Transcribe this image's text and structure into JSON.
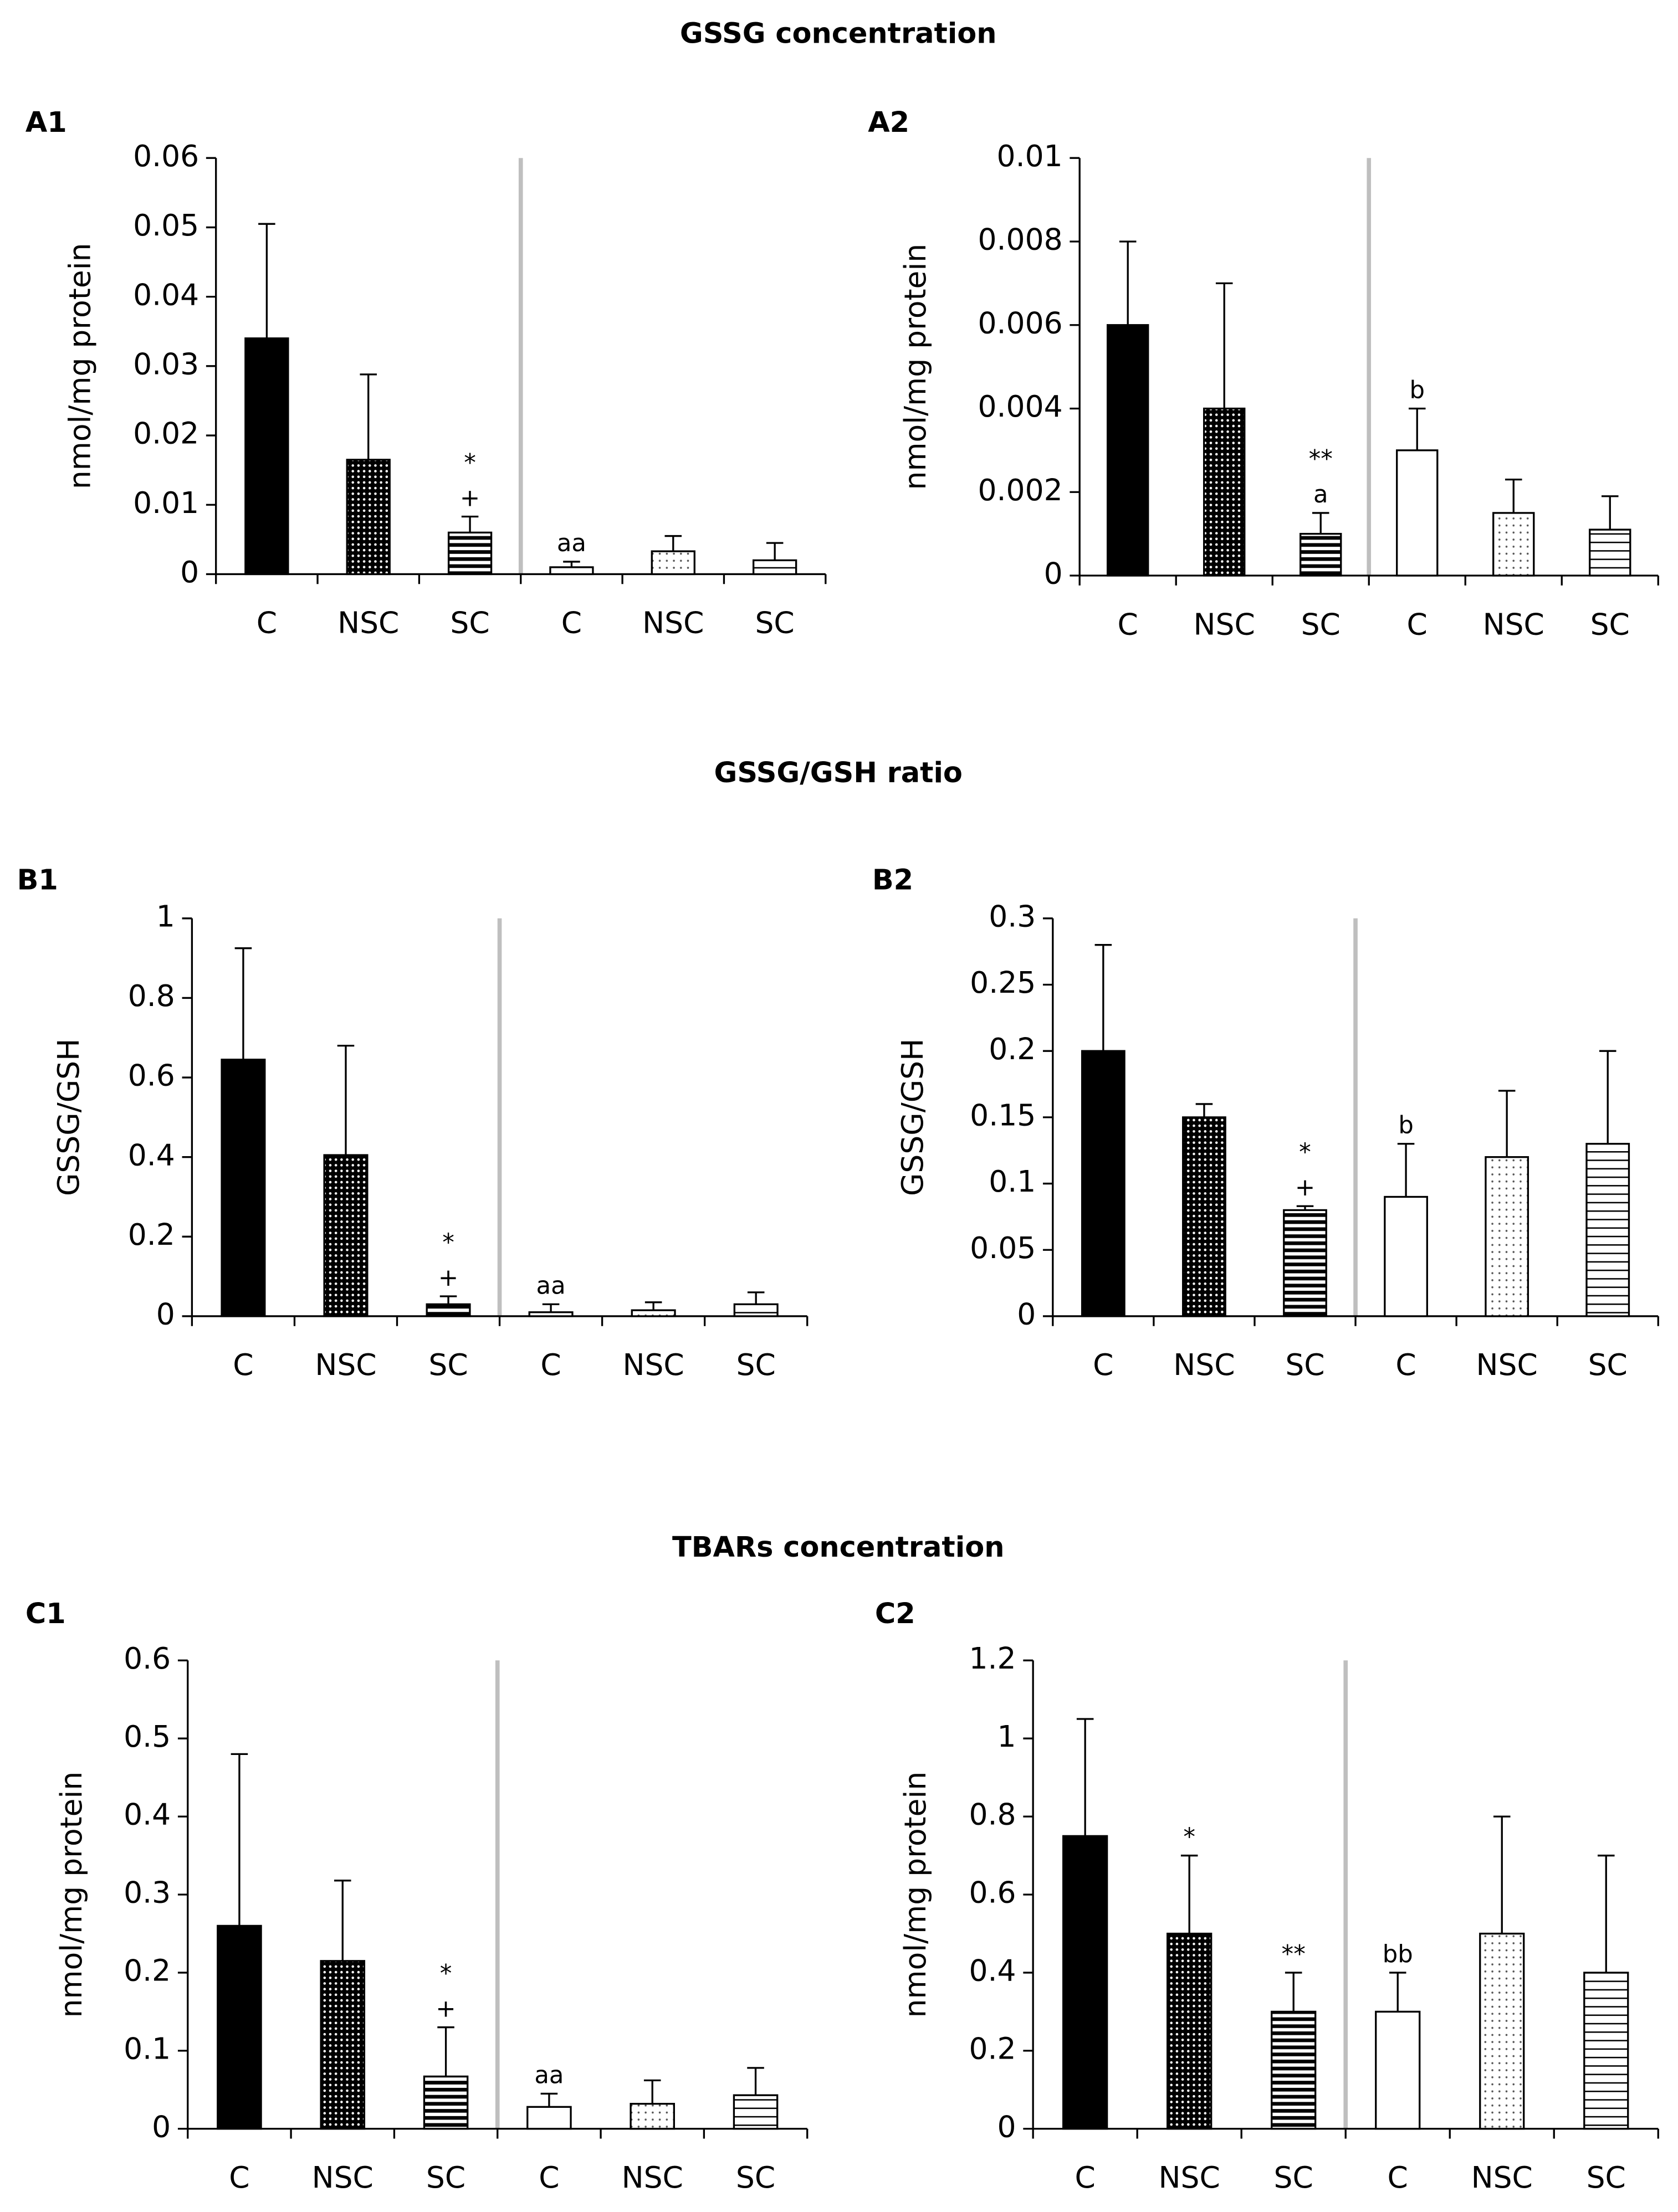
{
  "sections": [
    {
      "title": "GSSG concentration"
    },
    {
      "title": "GSSG/GSH ratio"
    },
    {
      "title": "TBARs concentration"
    }
  ],
  "chart_data": [
    {
      "type": "bar",
      "label": "A1",
      "ylabel": "nmol/mg protein",
      "categories": [
        "C",
        "NSC",
        "SC",
        "C",
        "NSC",
        "SC"
      ],
      "values": [
        0.034,
        0.0165,
        0.006,
        0.001,
        0.0033,
        0.002
      ],
      "errors": [
        0.0165,
        0.0123,
        0.0023,
        0.0008,
        0.0022,
        0.0025
      ],
      "annotations": [
        [],
        [],
        [
          "*",
          "+"
        ],
        [
          "aa"
        ],
        [],
        []
      ],
      "fills": [
        "solid",
        "dense-dots",
        "stripes",
        "open",
        "sparse-dots",
        "thin-stripes"
      ],
      "ylim": [
        0,
        0.06
      ],
      "yticks": [
        0,
        0.01,
        0.02,
        0.03,
        0.04,
        0.05,
        0.06
      ]
    },
    {
      "type": "bar",
      "label": "A2",
      "ylabel": "nmol/mg protein",
      "categories": [
        "C",
        "NSC",
        "SC",
        "C",
        "NSC",
        "SC"
      ],
      "values": [
        0.006,
        0.004,
        0.001,
        0.003,
        0.0015,
        0.0011
      ],
      "errors": [
        0.002,
        0.003,
        0.0005,
        0.001,
        0.0008,
        0.0008
      ],
      "annotations": [
        [],
        [],
        [
          "**",
          "a"
        ],
        [
          "b"
        ],
        [],
        []
      ],
      "fills": [
        "solid",
        "dense-dots",
        "stripes",
        "open",
        "sparse-dots",
        "thin-stripes"
      ],
      "ylim": [
        0,
        0.01
      ],
      "yticks": [
        0,
        0.002,
        0.004,
        0.006,
        0.008,
        0.01
      ]
    },
    {
      "type": "bar",
      "label": "B1",
      "ylabel": "GSSG/GSH",
      "categories": [
        "C",
        "NSC",
        "SC",
        "C",
        "NSC",
        "SC"
      ],
      "values": [
        0.645,
        0.405,
        0.03,
        0.01,
        0.015,
        0.03
      ],
      "errors": [
        0.28,
        0.275,
        0.02,
        0.02,
        0.02,
        0.03
      ],
      "annotations": [
        [],
        [],
        [
          "*",
          "+"
        ],
        [
          "aa"
        ],
        [],
        []
      ],
      "fills": [
        "solid",
        "dense-dots",
        "stripes",
        "open",
        "sparse-dots",
        "thin-stripes"
      ],
      "ylim": [
        0,
        1
      ],
      "yticks": [
        0,
        0.2,
        0.4,
        0.6,
        0.8,
        1
      ]
    },
    {
      "type": "bar",
      "label": "B2",
      "ylabel": "GSSG/GSH",
      "categories": [
        "C",
        "NSC",
        "SC",
        "C",
        "NSC",
        "SC"
      ],
      "values": [
        0.2,
        0.15,
        0.08,
        0.09,
        0.12,
        0.13
      ],
      "errors": [
        0.08,
        0.01,
        0.003,
        0.04,
        0.05,
        0.07
      ],
      "annotations": [
        [],
        [],
        [
          "*",
          "+"
        ],
        [
          "b"
        ],
        [],
        []
      ],
      "fills": [
        "solid",
        "dense-dots",
        "stripes",
        "open",
        "sparse-dots",
        "thin-stripes"
      ],
      "ylim": [
        0,
        0.3
      ],
      "yticks": [
        0,
        0.05,
        0.1,
        0.15,
        0.2,
        0.25,
        0.3
      ]
    },
    {
      "type": "bar",
      "label": "C1",
      "ylabel": "nmol/mg protein",
      "categories": [
        "C",
        "NSC",
        "SC",
        "C",
        "NSC",
        "SC"
      ],
      "values": [
        0.26,
        0.215,
        0.067,
        0.028,
        0.032,
        0.043
      ],
      "errors": [
        0.22,
        0.103,
        0.063,
        0.017,
        0.03,
        0.035
      ],
      "annotations": [
        [],
        [],
        [
          "*",
          "+"
        ],
        [
          "aa"
        ],
        [],
        []
      ],
      "fills": [
        "solid",
        "dense-dots",
        "stripes",
        "open",
        "sparse-dots",
        "thin-stripes"
      ],
      "ylim": [
        0,
        0.6
      ],
      "yticks": [
        0,
        0.1,
        0.2,
        0.3,
        0.4,
        0.5,
        0.6
      ]
    },
    {
      "type": "bar",
      "label": "C2",
      "ylabel": "nmol/mg protein",
      "categories": [
        "C",
        "NSC",
        "SC",
        "C",
        "NSC",
        "SC"
      ],
      "values": [
        0.75,
        0.5,
        0.3,
        0.3,
        0.5,
        0.4
      ],
      "errors": [
        0.3,
        0.2,
        0.1,
        0.1,
        0.3,
        0.3
      ],
      "annotations": [
        [],
        [
          "*"
        ],
        [
          "**"
        ],
        [
          "bb"
        ],
        [],
        []
      ],
      "fills": [
        "solid",
        "dense-dots",
        "stripes",
        "open",
        "sparse-dots",
        "thin-stripes"
      ],
      "ylim": [
        0,
        1.2
      ],
      "yticks": [
        0,
        0.2,
        0.4,
        0.6,
        0.8,
        1,
        1.2
      ]
    }
  ]
}
